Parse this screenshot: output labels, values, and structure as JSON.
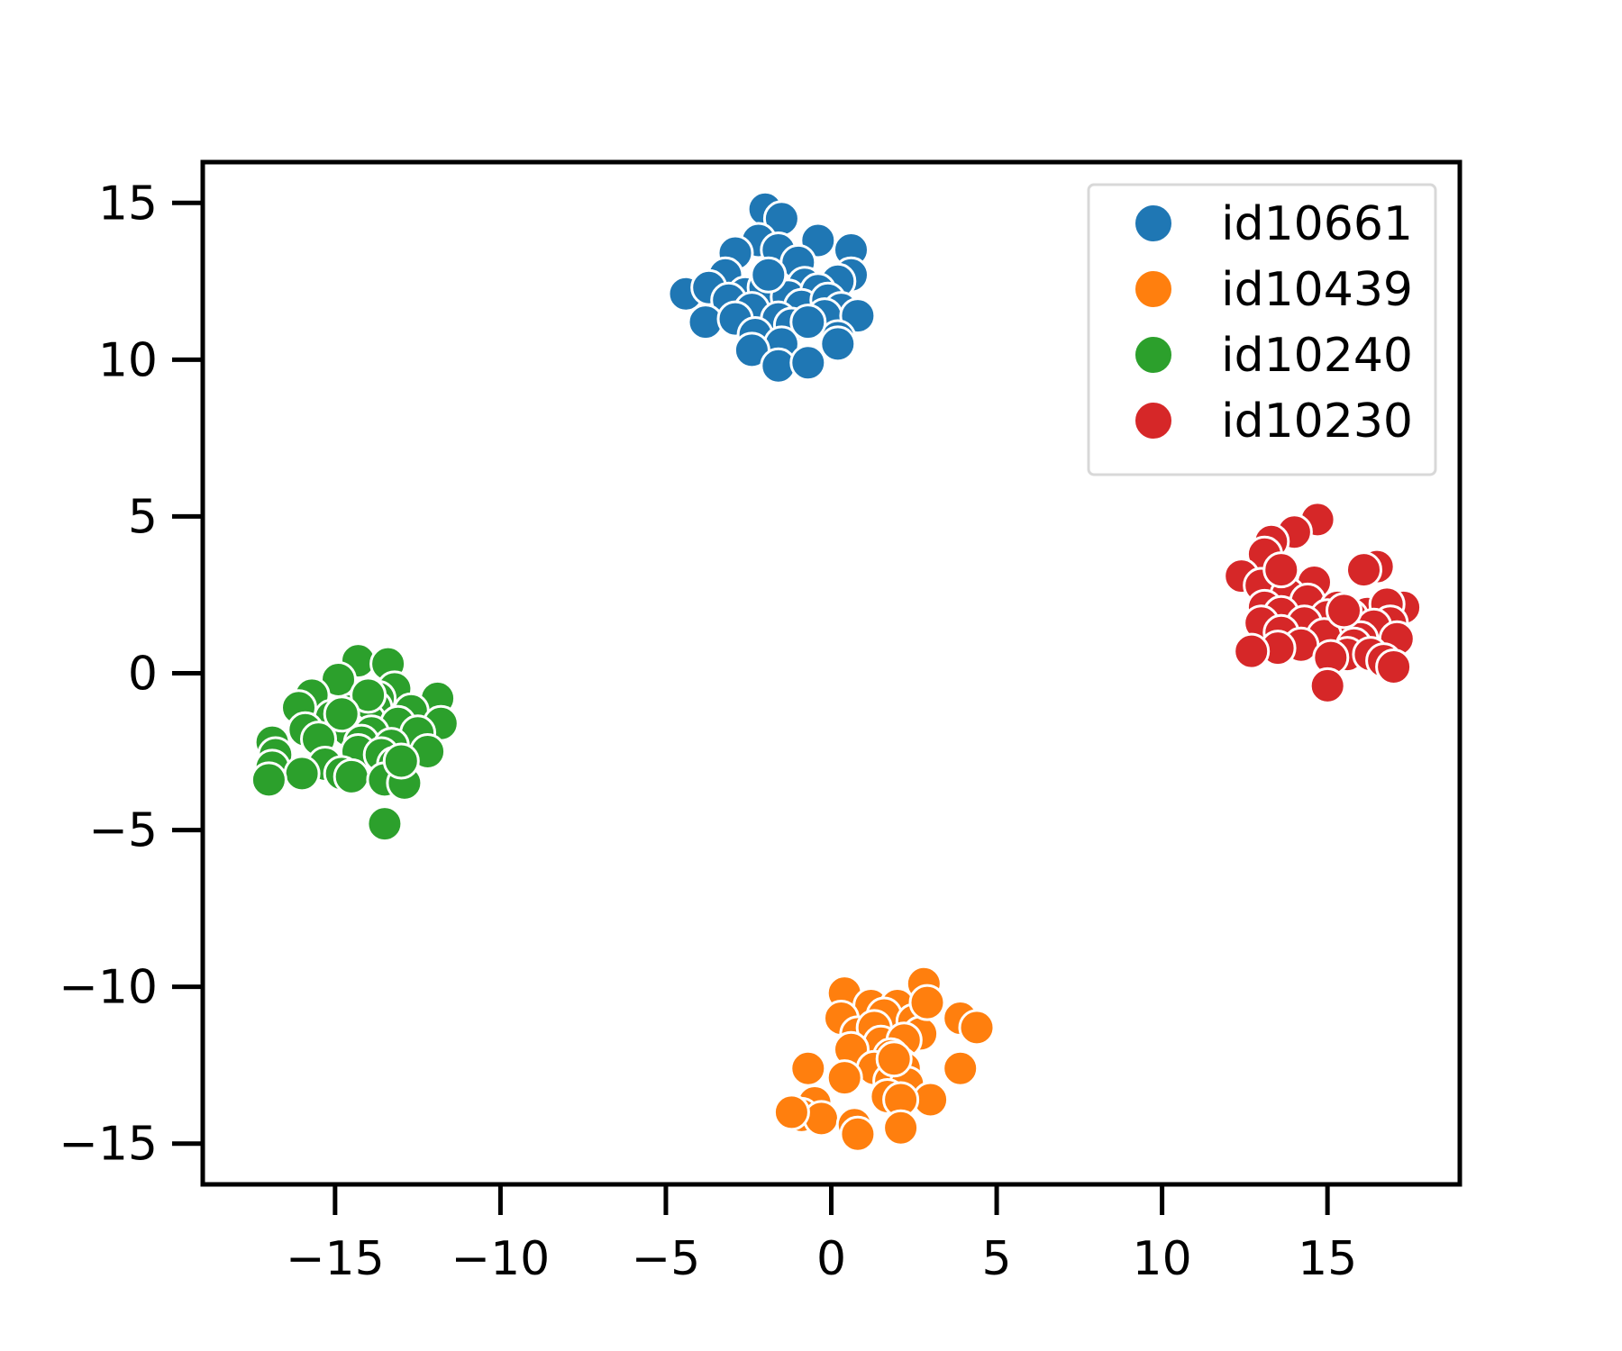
{
  "chart_data": {
    "type": "scatter",
    "title": "",
    "xlabel": "",
    "ylabel": "",
    "xlim": [
      -19,
      19
    ],
    "ylim": [
      -16.3,
      16.3
    ],
    "xticks": [
      -15,
      -10,
      -5,
      0,
      5,
      10,
      15
    ],
    "yticks": [
      -15,
      -10,
      -5,
      0,
      5,
      10,
      15
    ],
    "xtick_labels": [
      "−15",
      "−10",
      "−5",
      "0",
      "5",
      "10",
      "15"
    ],
    "ytick_labels": [
      "−15",
      "−10",
      "−5",
      "0",
      "5",
      "10",
      "15"
    ],
    "grid": false,
    "legend_position": "top-right",
    "series": [
      {
        "name": "id10661",
        "color": "#1f77b4",
        "points": [
          [
            -2.0,
            14.8
          ],
          [
            -1.5,
            14.5
          ],
          [
            -2.2,
            13.8
          ],
          [
            -1.6,
            13.5
          ],
          [
            -0.4,
            13.8
          ],
          [
            0.6,
            13.5
          ],
          [
            -2.9,
            13.4
          ],
          [
            -3.2,
            12.7
          ],
          [
            -1.0,
            13.1
          ],
          [
            -0.8,
            12.4
          ],
          [
            0.6,
            12.7
          ],
          [
            0.2,
            12.5
          ],
          [
            -4.4,
            12.1
          ],
          [
            -3.7,
            12.3
          ],
          [
            -2.6,
            12.1
          ],
          [
            -2.0,
            12.3
          ],
          [
            -1.3,
            12.0
          ],
          [
            -0.4,
            12.2
          ],
          [
            -3.1,
            11.9
          ],
          [
            -2.4,
            11.6
          ],
          [
            -0.9,
            11.7
          ],
          [
            -0.1,
            11.9
          ],
          [
            0.3,
            11.6
          ],
          [
            -1.6,
            11.3
          ],
          [
            -3.8,
            11.2
          ],
          [
            -2.9,
            11.3
          ],
          [
            -1.2,
            11.1
          ],
          [
            -0.2,
            11.4
          ],
          [
            0.8,
            11.4
          ],
          [
            -2.3,
            10.8
          ],
          [
            -1.5,
            10.5
          ],
          [
            0.2,
            10.7
          ],
          [
            -2.4,
            10.3
          ],
          [
            -1.6,
            9.8
          ],
          [
            -0.7,
            9.9
          ],
          [
            0.2,
            10.5
          ],
          [
            -1.9,
            12.7
          ],
          [
            -0.7,
            11.2
          ]
        ]
      },
      {
        "name": "id10439",
        "color": "#ff7f0e",
        "points": [
          [
            0.4,
            -10.2
          ],
          [
            2.8,
            -9.9
          ],
          [
            1.2,
            -10.6
          ],
          [
            2.0,
            -10.6
          ],
          [
            0.3,
            -11.0
          ],
          [
            1.6,
            -10.9
          ],
          [
            3.9,
            -11.0
          ],
          [
            4.4,
            -11.3
          ],
          [
            2.5,
            -11.1
          ],
          [
            0.8,
            -11.5
          ],
          [
            1.3,
            -11.3
          ],
          [
            2.7,
            -11.5
          ],
          [
            1.5,
            -11.8
          ],
          [
            2.2,
            -11.7
          ],
          [
            0.6,
            -12.0
          ],
          [
            1.8,
            -12.2
          ],
          [
            2.1,
            -12.5
          ],
          [
            -0.7,
            -12.6
          ],
          [
            1.3,
            -12.6
          ],
          [
            2.2,
            -12.6
          ],
          [
            3.9,
            -12.6
          ],
          [
            0.4,
            -12.9
          ],
          [
            1.8,
            -13.0
          ],
          [
            2.3,
            -13.1
          ],
          [
            1.7,
            -13.5
          ],
          [
            3.0,
            -13.6
          ],
          [
            -0.5,
            -13.7
          ],
          [
            2.1,
            -13.6
          ],
          [
            -0.9,
            -14.1
          ],
          [
            -0.3,
            -14.2
          ],
          [
            0.7,
            -14.4
          ],
          [
            0.8,
            -14.7
          ],
          [
            2.1,
            -14.5
          ],
          [
            -1.2,
            -14.0
          ],
          [
            2.9,
            -10.5
          ],
          [
            1.9,
            -12.3
          ]
        ]
      },
      {
        "name": "id10240",
        "color": "#2ca02c",
        "points": [
          [
            -14.3,
            0.4
          ],
          [
            -13.4,
            0.3
          ],
          [
            -14.9,
            -0.2
          ],
          [
            -13.2,
            -0.5
          ],
          [
            -13.7,
            -0.8
          ],
          [
            -11.9,
            -0.8
          ],
          [
            -15.7,
            -0.7
          ],
          [
            -16.1,
            -1.1
          ],
          [
            -14.5,
            -1.2
          ],
          [
            -13.8,
            -1.1
          ],
          [
            -12.7,
            -1.2
          ],
          [
            -15.1,
            -1.4
          ],
          [
            -14.0,
            -1.5
          ],
          [
            -13.1,
            -1.6
          ],
          [
            -11.8,
            -1.6
          ],
          [
            -15.9,
            -1.8
          ],
          [
            -14.6,
            -1.8
          ],
          [
            -13.9,
            -1.9
          ],
          [
            -12.5,
            -1.9
          ],
          [
            -15.5,
            -2.1
          ],
          [
            -14.2,
            -2.2
          ],
          [
            -13.3,
            -2.3
          ],
          [
            -16.9,
            -2.2
          ],
          [
            -14.3,
            -2.5
          ],
          [
            -13.6,
            -2.6
          ],
          [
            -12.2,
            -2.5
          ],
          [
            -16.8,
            -2.6
          ],
          [
            -15.3,
            -2.9
          ],
          [
            -13.2,
            -2.9
          ],
          [
            -16.9,
            -3.0
          ],
          [
            -14.8,
            -3.2
          ],
          [
            -14.5,
            -3.3
          ],
          [
            -16.0,
            -3.2
          ],
          [
            -13.5,
            -3.4
          ],
          [
            -17.0,
            -3.4
          ],
          [
            -12.9,
            -3.5
          ],
          [
            -13.5,
            -4.8
          ],
          [
            -13.0,
            -2.8
          ],
          [
            -14.0,
            -0.7
          ],
          [
            -14.8,
            -1.3
          ]
        ]
      },
      {
        "name": "id10230",
        "color": "#d62728",
        "points": [
          [
            14.7,
            4.9
          ],
          [
            14.0,
            4.5
          ],
          [
            13.3,
            4.2
          ],
          [
            13.1,
            3.8
          ],
          [
            16.5,
            3.4
          ],
          [
            16.1,
            3.3
          ],
          [
            12.4,
            3.1
          ],
          [
            13.0,
            2.8
          ],
          [
            14.6,
            2.9
          ],
          [
            13.8,
            2.5
          ],
          [
            14.4,
            2.3
          ],
          [
            15.3,
            2.1
          ],
          [
            16.2,
            1.9
          ],
          [
            17.3,
            2.1
          ],
          [
            16.8,
            2.2
          ],
          [
            13.1,
            2.1
          ],
          [
            13.6,
            1.9
          ],
          [
            15.0,
            1.8
          ],
          [
            15.7,
            1.8
          ],
          [
            16.9,
            1.6
          ],
          [
            13.0,
            1.6
          ],
          [
            14.3,
            1.6
          ],
          [
            15.6,
            1.4
          ],
          [
            16.4,
            1.5
          ],
          [
            13.6,
            1.3
          ],
          [
            14.9,
            1.2
          ],
          [
            16.0,
            1.1
          ],
          [
            17.1,
            1.1
          ],
          [
            14.2,
            0.9
          ],
          [
            13.5,
            0.8
          ],
          [
            15.8,
            0.9
          ],
          [
            12.7,
            0.7
          ],
          [
            15.6,
            0.6
          ],
          [
            16.3,
            0.6
          ],
          [
            15.1,
            0.5
          ],
          [
            16.7,
            0.4
          ],
          [
            17.0,
            0.2
          ],
          [
            15.0,
            -0.4
          ],
          [
            13.6,
            3.3
          ],
          [
            15.5,
            2.0
          ]
        ]
      }
    ]
  }
}
